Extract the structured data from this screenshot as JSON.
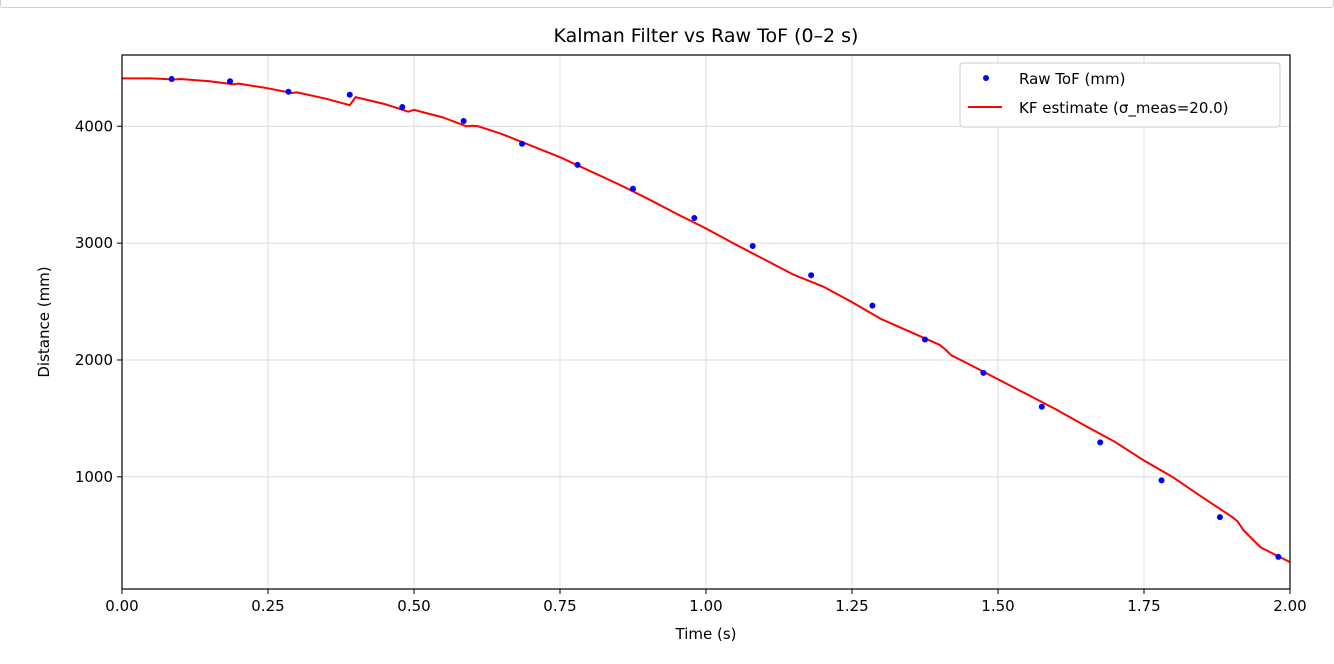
{
  "chart_data": {
    "type": "line",
    "title": "Kalman Filter vs Raw ToF (0–2 s)",
    "xlabel": "Time (s)",
    "ylabel": "Distance (mm)",
    "xlim": [
      0,
      2
    ],
    "ylim": [
      40,
      4610
    ],
    "grid": true,
    "legend_position": "top-right",
    "x_ticks": [
      0,
      0.25,
      0.5,
      0.75,
      1.0,
      1.25,
      1.5,
      1.75,
      2.0
    ],
    "x_tick_labels": [
      "0.00",
      "0.25",
      "0.50",
      "0.75",
      "1.00",
      "1.25",
      "1.50",
      "1.75",
      "2.00"
    ],
    "y_ticks": [
      1000,
      2000,
      3000,
      4000
    ],
    "y_tick_labels": [
      "1000",
      "2000",
      "3000",
      "4000"
    ],
    "series": [
      {
        "name": "Raw ToF (mm)",
        "kind": "scatter",
        "color": "#0000ff",
        "x": [
          0.085,
          0.185,
          0.285,
          0.39,
          0.48,
          0.585,
          0.685,
          0.78,
          0.875,
          0.98,
          1.08,
          1.18,
          1.285,
          1.375,
          1.475,
          1.575,
          1.675,
          1.78,
          1.88,
          1.98
        ],
        "y": [
          4405,
          4385,
          4295,
          4270,
          4165,
          4045,
          3850,
          3670,
          3465,
          3215,
          2975,
          2725,
          2465,
          2175,
          1890,
          1600,
          1295,
          970,
          655,
          315
        ]
      },
      {
        "name": "KF estimate (σ_meas=20.0)",
        "kind": "line",
        "color": "#ff0000",
        "x": [
          0.0,
          0.05,
          0.09,
          0.1,
          0.15,
          0.19,
          0.2,
          0.25,
          0.29,
          0.3,
          0.35,
          0.39,
          0.4,
          0.45,
          0.49,
          0.5,
          0.55,
          0.59,
          0.6,
          0.61,
          0.65,
          0.7,
          0.75,
          0.8,
          0.85,
          0.9,
          0.95,
          1.0,
          1.05,
          1.1,
          1.15,
          1.2,
          1.25,
          1.3,
          1.35,
          1.4,
          1.41,
          1.42,
          1.45,
          1.5,
          1.55,
          1.6,
          1.65,
          1.7,
          1.75,
          1.8,
          1.85,
          1.9,
          1.91,
          1.92,
          1.95,
          2.0
        ],
        "y": [
          4410,
          4410,
          4400,
          4405,
          4385,
          4360,
          4365,
          4325,
          4285,
          4290,
          4235,
          4180,
          4250,
          4190,
          4125,
          4140,
          4075,
          4000,
          4005,
          4000,
          3935,
          3835,
          3735,
          3620,
          3505,
          3380,
          3250,
          3125,
          2990,
          2860,
          2730,
          2630,
          2495,
          2350,
          2240,
          2130,
          2090,
          2040,
          1965,
          1835,
          1705,
          1575,
          1435,
          1300,
          1140,
          995,
          825,
          660,
          620,
          545,
          395,
          270
        ]
      }
    ]
  }
}
